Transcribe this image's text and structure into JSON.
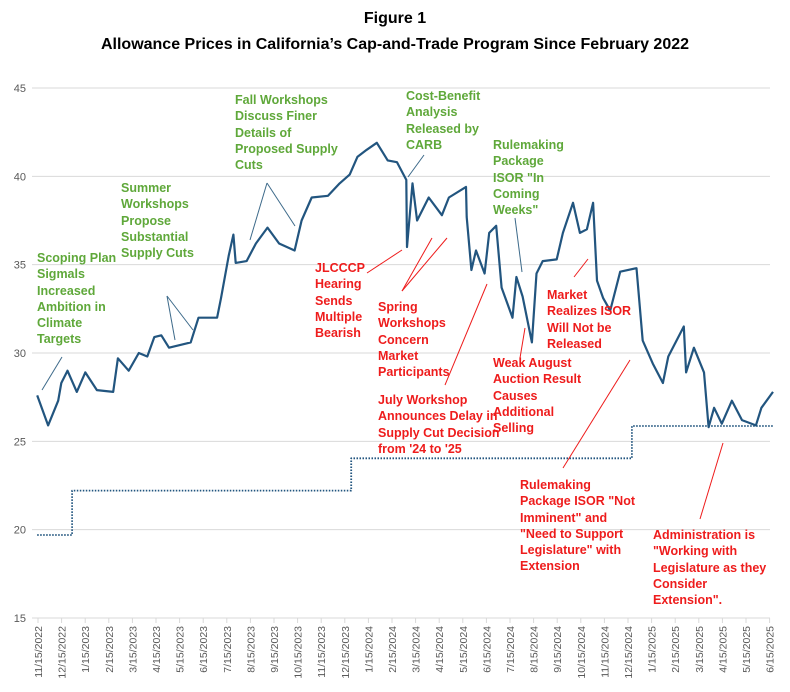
{
  "title": "Figure 1",
  "subtitle": "Allowance Prices in California’s Cap-and-Trade Program Since February 2022",
  "colors": {
    "price": "#22557f",
    "floor": "#22557f",
    "green_annotation": "#5fa83a",
    "red_annotation": "#ee1c1c",
    "grid": "#d9d9d9"
  },
  "chart_data": {
    "type": "line",
    "title": "Allowance Prices in California’s Cap-and-Trade Program Since February 2022",
    "xlabel": "",
    "ylabel": "",
    "ylim": [
      15,
      45
    ],
    "yticks": [
      15,
      20,
      25,
      30,
      35,
      40,
      45
    ],
    "grid": true,
    "xticks": [
      "11/15/2022",
      "12/15/2022",
      "1/15/2023",
      "2/15/2023",
      "3/15/2023",
      "4/15/2023",
      "5/15/2023",
      "6/15/2023",
      "7/15/2023",
      "8/15/2023",
      "9/15/2023",
      "10/15/2023",
      "11/15/2023",
      "12/15/2023",
      "1/15/2024",
      "2/15/2024",
      "3/15/2024",
      "4/15/2024",
      "5/15/2024",
      "6/15/2024",
      "7/15/2024",
      "8/15/2024",
      "9/15/2024",
      "10/15/2024",
      "11/15/2024",
      "12/15/2024",
      "1/15/2025",
      "2/15/2025",
      "3/15/2025",
      "4/15/2025",
      "5/15/2025",
      "6/15/2025"
    ],
    "series": [
      {
        "style": "solid",
        "points": [
          [
            "2022-11-14",
            27.6
          ],
          [
            "2022-11-28",
            25.9
          ],
          [
            "2022-12-11",
            27.3
          ],
          [
            "2022-12-15",
            28.3
          ],
          [
            "2022-12-23",
            29.0
          ],
          [
            "2023-01-04",
            27.8
          ],
          [
            "2023-01-15",
            28.9
          ],
          [
            "2023-01-30",
            27.9
          ],
          [
            "2023-02-20",
            27.8
          ],
          [
            "2023-02-26",
            29.7
          ],
          [
            "2023-03-12",
            29.0
          ],
          [
            "2023-03-25",
            30.0
          ],
          [
            "2023-04-05",
            29.8
          ],
          [
            "2023-04-14",
            30.9
          ],
          [
            "2023-04-23",
            31.0
          ],
          [
            "2023-05-03",
            30.3
          ],
          [
            "2023-05-31",
            30.6
          ],
          [
            "2023-06-10",
            32.0
          ],
          [
            "2023-07-04",
            32.0
          ],
          [
            "2023-07-09",
            33.1
          ],
          [
            "2023-07-19",
            35.5
          ],
          [
            "2023-07-25",
            36.7
          ],
          [
            "2023-07-28",
            35.1
          ],
          [
            "2023-08-11",
            35.2
          ],
          [
            "2023-08-23",
            36.2
          ],
          [
            "2023-09-07",
            37.1
          ],
          [
            "2023-09-22",
            36.2
          ],
          [
            "2023-10-12",
            35.8
          ],
          [
            "2023-10-21",
            37.5
          ],
          [
            "2023-11-03",
            38.8
          ],
          [
            "2023-11-24",
            38.9
          ],
          [
            "2023-12-09",
            39.6
          ],
          [
            "2023-12-22",
            40.1
          ],
          [
            "2024-01-01",
            41.1
          ],
          [
            "2024-01-13",
            41.5
          ],
          [
            "2024-01-26",
            41.9
          ],
          [
            "2024-02-09",
            40.9
          ],
          [
            "2024-02-21",
            40.8
          ],
          [
            "2024-03-04",
            39.8
          ],
          [
            "2024-03-05",
            36.0
          ],
          [
            "2024-03-12",
            39.6
          ],
          [
            "2024-03-18",
            37.5
          ],
          [
            "2024-04-02",
            38.8
          ],
          [
            "2024-04-19",
            37.8
          ],
          [
            "2024-04-28",
            38.8
          ],
          [
            "2024-05-20",
            39.4
          ],
          [
            "2024-05-21",
            37.7
          ],
          [
            "2024-05-27",
            34.7
          ],
          [
            "2024-06-02",
            35.8
          ],
          [
            "2024-06-13",
            34.5
          ],
          [
            "2024-06-19",
            36.8
          ],
          [
            "2024-06-28",
            37.2
          ],
          [
            "2024-07-05",
            33.7
          ],
          [
            "2024-07-19",
            32.0
          ],
          [
            "2024-07-24",
            34.3
          ],
          [
            "2024-08-01",
            33.2
          ],
          [
            "2024-08-13",
            30.6
          ],
          [
            "2024-08-19",
            34.5
          ],
          [
            "2024-08-27",
            35.2
          ],
          [
            "2024-09-14",
            35.3
          ],
          [
            "2024-09-22",
            36.8
          ],
          [
            "2024-10-05",
            38.5
          ],
          [
            "2024-10-14",
            36.8
          ],
          [
            "2024-10-23",
            37.0
          ],
          [
            "2024-10-31",
            38.5
          ],
          [
            "2024-11-05",
            34.1
          ],
          [
            "2024-11-13",
            33.1
          ],
          [
            "2024-11-22",
            32.4
          ],
          [
            "2024-12-05",
            34.6
          ],
          [
            "2024-12-26",
            34.8
          ],
          [
            "2025-01-03",
            30.7
          ],
          [
            "2025-01-16",
            29.4
          ],
          [
            "2025-01-29",
            28.3
          ],
          [
            "2025-02-05",
            29.8
          ],
          [
            "2025-02-25",
            31.5
          ],
          [
            "2025-02-28",
            28.9
          ],
          [
            "2025-03-10",
            30.3
          ],
          [
            "2025-03-23",
            28.9
          ],
          [
            "2025-03-29",
            25.8
          ],
          [
            "2025-04-05",
            26.9
          ],
          [
            "2025-04-15",
            26.0
          ],
          [
            "2025-04-28",
            27.3
          ],
          [
            "2025-05-11",
            26.2
          ],
          [
            "2025-05-29",
            25.9
          ],
          [
            "2025-06-05",
            26.9
          ],
          [
            "2025-06-20",
            27.8
          ]
        ]
      },
      {
        "style": "dotted-step",
        "points": [
          [
            "2022-11-14",
            19.7
          ],
          [
            "2022-12-29",
            19.7
          ],
          [
            "2022-12-29",
            22.21
          ],
          [
            "2023-12-24",
            22.21
          ],
          [
            "2023-12-24",
            24.04
          ],
          [
            "2024-12-20",
            24.04
          ],
          [
            "2024-12-20",
            25.87
          ],
          [
            "2025-06-20",
            25.87
          ]
        ]
      }
    ],
    "annotations": [
      {
        "text": "Scoping Plan\nSigmals\nIncreased\nAmbition in\nClimate\nTargets",
        "color": "green"
      },
      {
        "text": "Summer\nWorkshops\nPropose\nSubstantial\nSupply Cuts",
        "color": "green"
      },
      {
        "text": "Fall Workshops\nDiscuss Finer\nDetails of\nProposed Supply\nCuts",
        "color": "green"
      },
      {
        "text": "Cost-Benefit\nAnalysis\nReleased by\nCARB",
        "color": "green"
      },
      {
        "text": "Rulemaking\nPackage\nISOR \"In\nComing\nWeeks\"",
        "color": "green"
      },
      {
        "text": "JLCCCP\nHearing\nSends\nMultiple\nBearish",
        "color": "red"
      },
      {
        "text": "Spring\nWorkshops\nConcern\nMarket\nParticipants",
        "color": "red"
      },
      {
        "text": "July Workshop\nAnnounces Delay in\nSupply Cut Decision\nfrom '24 to '25",
        "color": "red"
      },
      {
        "text": "Weak August\nAuction Result\nCauses\nAdditional\nSelling",
        "color": "red"
      },
      {
        "text": "Market\nRealizes ISOR\nWill Not be\nReleased",
        "color": "red"
      },
      {
        "text": "Rulemaking\nPackage ISOR \"Not\nImminent\" and\n\"Need to Support\nLegislature\" with\nExtension",
        "color": "red"
      },
      {
        "text": "Administration is\n\"Working with\nLegislature as they\nConsider\nExtension\".",
        "color": "red"
      }
    ]
  }
}
